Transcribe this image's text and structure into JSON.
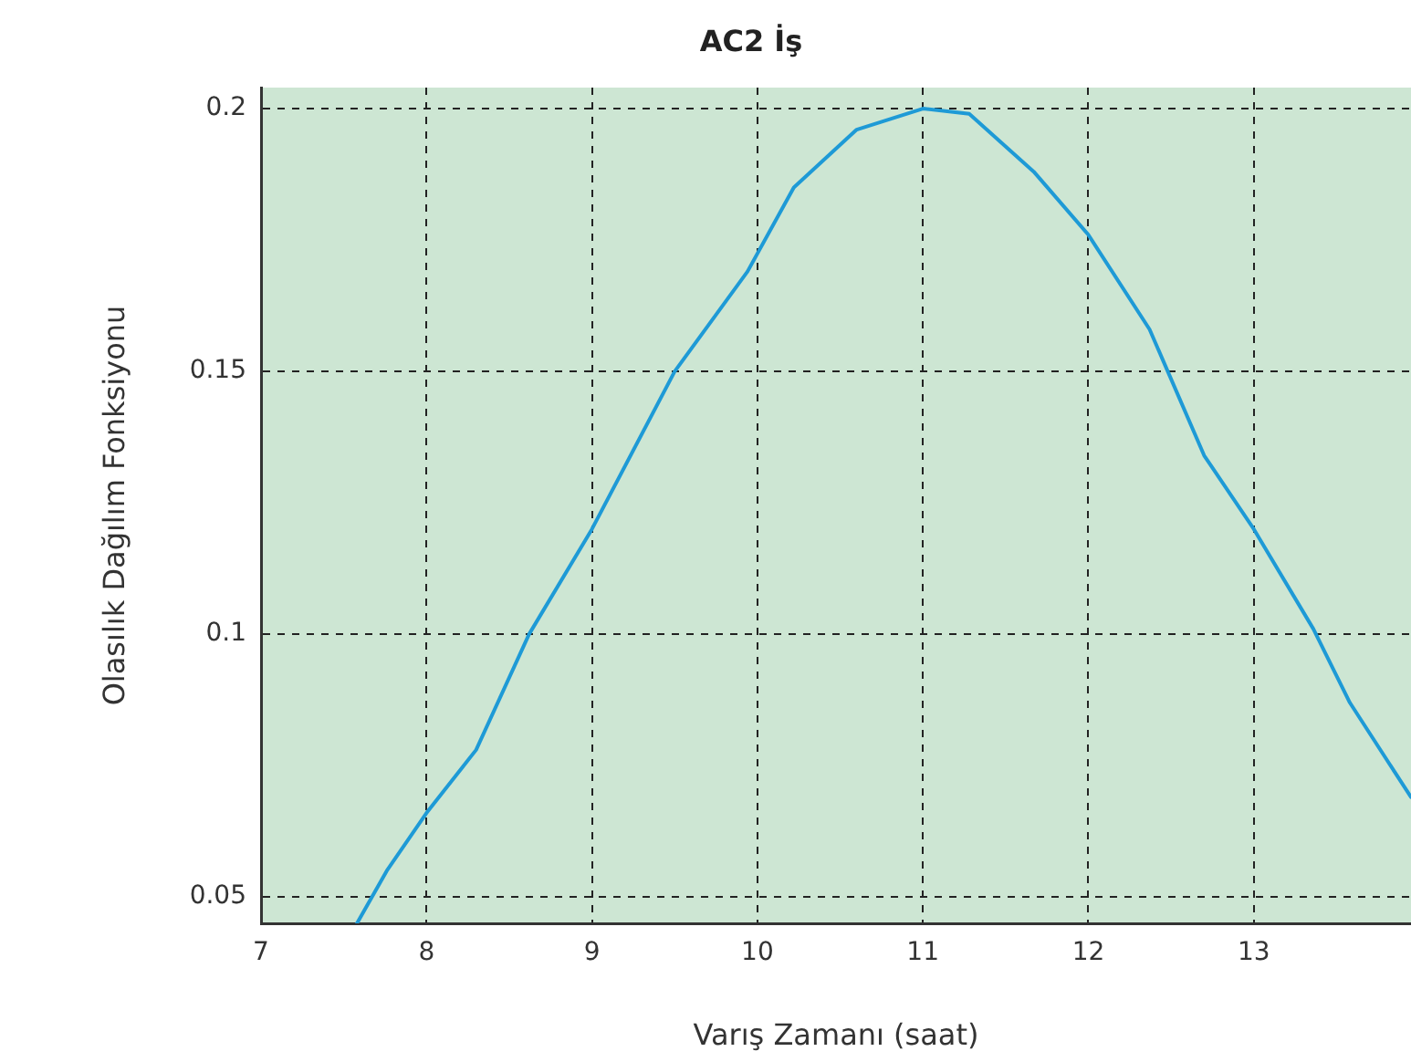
{
  "chart_data": {
    "type": "line",
    "title": "AC2 İş",
    "xlabel": "Varış Zamanı (saat)",
    "ylabel": "Olasılık Dağılım Fonksiyonu",
    "x": [
      7.58,
      7.76,
      8,
      8.3,
      8.62,
      9,
      9.5,
      9.94,
      10.22,
      10.6,
      11,
      11.28,
      11.67,
      12,
      12.37,
      12.7,
      13,
      13.36,
      13.58,
      13.95
    ],
    "series": [
      {
        "color": "#1e9ad6",
        "values": [
          0.045,
          0.055,
          0.066,
          0.078,
          0.1,
          0.12,
          0.15,
          0.169,
          0.185,
          0.196,
          0.2,
          0.199,
          0.188,
          0.176,
          0.158,
          0.134,
          0.12,
          0.101,
          0.087,
          0.069
        ]
      }
    ],
    "xlim": [
      7,
      13.95
    ],
    "xticks": [
      7,
      8,
      9,
      10,
      11,
      12,
      13
    ],
    "ylim": [
      0.045,
      0.204
    ],
    "yticks": [
      0.05,
      0.1,
      0.15,
      0.2
    ],
    "grid": true,
    "legend": false,
    "marker": "none",
    "line_style": "solid"
  }
}
